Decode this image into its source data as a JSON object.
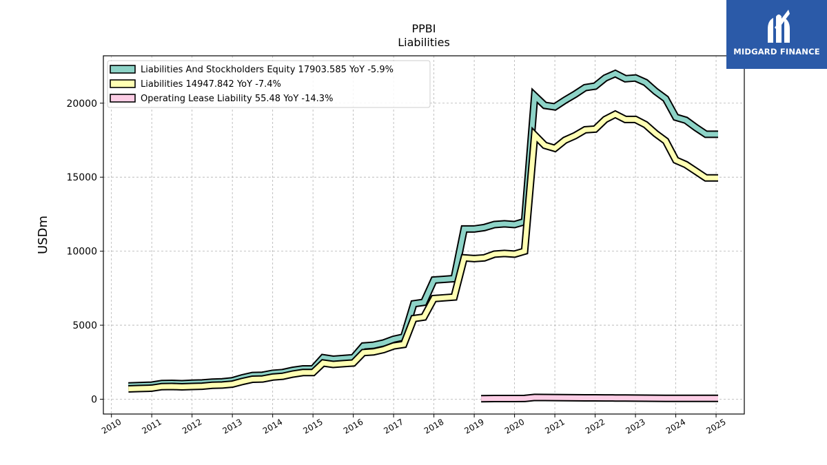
{
  "chart_data": {
    "type": "line",
    "title": "PPBI",
    "subtitle": "Liabilities",
    "xlabel": "",
    "ylabel": "USDm",
    "xlim": [
      2009.8,
      2025.7
    ],
    "ylim": [
      -1000,
      23200
    ],
    "x_ticks": [
      "2010",
      "2011",
      "2012",
      "2013",
      "2014",
      "2015",
      "2016",
      "2017",
      "2018",
      "2019",
      "2020",
      "2021",
      "2022",
      "2023",
      "2024",
      "2025"
    ],
    "y_ticks": [
      0,
      5000,
      10000,
      15000,
      20000
    ],
    "grid": true,
    "legend_position": "top-left",
    "series": [
      {
        "name": "Liabilities And Stockholders Equity",
        "legend_label": "Liabilities And Stockholders Equity  17903.585 YoY -5.9%",
        "color": "#8dd3c7",
        "points": [
          [
            2010.42,
            900
          ],
          [
            2010.67,
            920
          ],
          [
            2010.92,
            940
          ],
          [
            2011.0,
            950
          ],
          [
            2011.25,
            1060
          ],
          [
            2011.5,
            1070
          ],
          [
            2011.75,
            1050
          ],
          [
            2012.0,
            1080
          ],
          [
            2012.25,
            1100
          ],
          [
            2012.5,
            1150
          ],
          [
            2012.75,
            1180
          ],
          [
            2013.0,
            1250
          ],
          [
            2013.25,
            1450
          ],
          [
            2013.5,
            1600
          ],
          [
            2013.75,
            1620
          ],
          [
            2014.0,
            1750
          ],
          [
            2014.25,
            1800
          ],
          [
            2014.5,
            1950
          ],
          [
            2014.75,
            2050
          ],
          [
            2015.0,
            2050
          ],
          [
            2015.25,
            2800
          ],
          [
            2015.5,
            2700
          ],
          [
            2015.75,
            2750
          ],
          [
            2016.0,
            2800
          ],
          [
            2016.25,
            3600
          ],
          [
            2016.5,
            3650
          ],
          [
            2016.75,
            3800
          ],
          [
            2017.0,
            4050
          ],
          [
            2017.25,
            4200
          ],
          [
            2017.5,
            6450
          ],
          [
            2017.75,
            6550
          ],
          [
            2018.0,
            8050
          ],
          [
            2018.25,
            8100
          ],
          [
            2018.5,
            8150
          ],
          [
            2018.75,
            11500
          ],
          [
            2019.0,
            11500
          ],
          [
            2019.25,
            11600
          ],
          [
            2019.5,
            11800
          ],
          [
            2019.75,
            11850
          ],
          [
            2020.0,
            11800
          ],
          [
            2020.25,
            12000
          ],
          [
            2020.5,
            20500
          ],
          [
            2020.75,
            19850
          ],
          [
            2021.0,
            19750
          ],
          [
            2021.25,
            20200
          ],
          [
            2021.5,
            20600
          ],
          [
            2021.75,
            21050
          ],
          [
            2022.0,
            21150
          ],
          [
            2022.25,
            21700
          ],
          [
            2022.5,
            22000
          ],
          [
            2022.75,
            21650
          ],
          [
            2023.0,
            21700
          ],
          [
            2023.25,
            21400
          ],
          [
            2023.5,
            20800
          ],
          [
            2023.75,
            20300
          ],
          [
            2024.0,
            19050
          ],
          [
            2024.25,
            18850
          ],
          [
            2024.5,
            18350
          ],
          [
            2024.75,
            17900
          ],
          [
            2025.05,
            17900
          ]
        ]
      },
      {
        "name": "Liabilities",
        "legend_label": "Liabilities  14947.842 YoY -7.4%",
        "color": "#ffffb3",
        "points": [
          [
            2010.42,
            700
          ],
          [
            2010.67,
            720
          ],
          [
            2010.92,
            740
          ],
          [
            2011.0,
            750
          ],
          [
            2011.25,
            850
          ],
          [
            2011.5,
            860
          ],
          [
            2011.75,
            840
          ],
          [
            2012.0,
            860
          ],
          [
            2012.25,
            880
          ],
          [
            2012.5,
            940
          ],
          [
            2012.75,
            960
          ],
          [
            2013.0,
            1020
          ],
          [
            2013.25,
            1200
          ],
          [
            2013.5,
            1350
          ],
          [
            2013.75,
            1370
          ],
          [
            2014.0,
            1500
          ],
          [
            2014.25,
            1550
          ],
          [
            2014.5,
            1700
          ],
          [
            2014.75,
            1800
          ],
          [
            2015.0,
            1800
          ],
          [
            2015.25,
            2450
          ],
          [
            2015.5,
            2350
          ],
          [
            2015.75,
            2400
          ],
          [
            2016.0,
            2450
          ],
          [
            2016.25,
            3150
          ],
          [
            2016.5,
            3200
          ],
          [
            2016.75,
            3350
          ],
          [
            2017.0,
            3600
          ],
          [
            2017.25,
            3700
          ],
          [
            2017.5,
            5450
          ],
          [
            2017.75,
            5550
          ],
          [
            2018.0,
            6800
          ],
          [
            2018.25,
            6850
          ],
          [
            2018.5,
            6900
          ],
          [
            2018.75,
            9550
          ],
          [
            2019.0,
            9500
          ],
          [
            2019.25,
            9550
          ],
          [
            2019.5,
            9800
          ],
          [
            2019.75,
            9850
          ],
          [
            2020.0,
            9800
          ],
          [
            2020.25,
            10000
          ],
          [
            2020.5,
            17850
          ],
          [
            2020.75,
            17150
          ],
          [
            2021.0,
            16950
          ],
          [
            2021.25,
            17500
          ],
          [
            2021.5,
            17800
          ],
          [
            2021.75,
            18200
          ],
          [
            2022.0,
            18250
          ],
          [
            2022.25,
            18900
          ],
          [
            2022.5,
            19250
          ],
          [
            2022.75,
            18900
          ],
          [
            2023.0,
            18900
          ],
          [
            2023.25,
            18550
          ],
          [
            2023.5,
            17950
          ],
          [
            2023.75,
            17450
          ],
          [
            2024.0,
            16150
          ],
          [
            2024.25,
            15850
          ],
          [
            2024.5,
            15400
          ],
          [
            2024.75,
            14950
          ],
          [
            2025.05,
            14950
          ]
        ]
      },
      {
        "name": "Operating Lease Liability",
        "legend_label": "Operating Lease Liability  55.48 YoY -14.3%",
        "color": "#fccde5",
        "points": [
          [
            2019.17,
            40
          ],
          [
            2019.5,
            45
          ],
          [
            2019.75,
            48
          ],
          [
            2020.0,
            45
          ],
          [
            2020.25,
            50
          ],
          [
            2020.5,
            120
          ],
          [
            2020.75,
            115
          ],
          [
            2021.0,
            110
          ],
          [
            2021.25,
            105
          ],
          [
            2021.5,
            100
          ],
          [
            2021.75,
            95
          ],
          [
            2022.0,
            92
          ],
          [
            2022.25,
            88
          ],
          [
            2022.5,
            85
          ],
          [
            2022.75,
            80
          ],
          [
            2023.0,
            75
          ],
          [
            2023.25,
            70
          ],
          [
            2023.5,
            65
          ],
          [
            2023.75,
            62
          ],
          [
            2024.0,
            60
          ],
          [
            2024.25,
            58
          ],
          [
            2024.5,
            57
          ],
          [
            2024.75,
            56
          ],
          [
            2025.05,
            55.48
          ]
        ]
      }
    ]
  },
  "brand": {
    "name": "MIDGARD FINANCE",
    "color": "#2b5aa8"
  }
}
